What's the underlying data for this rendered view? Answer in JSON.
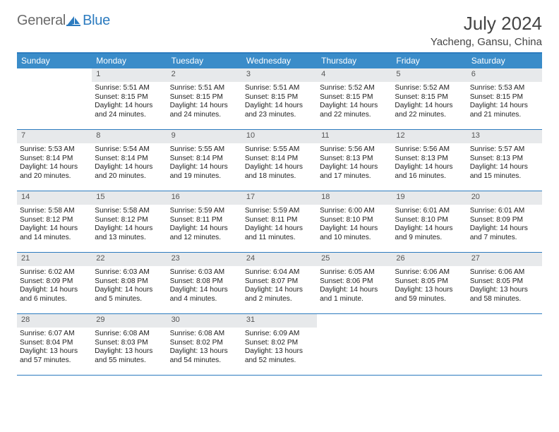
{
  "brand": {
    "part1": "General",
    "part2": "Blue"
  },
  "header": {
    "month_title": "July 2024",
    "location": "Yacheng, Gansu, China"
  },
  "colors": {
    "accent": "#2c7bbf",
    "header_bg": "#3a8cc9",
    "daynum_bg": "#e7e9eb",
    "text": "#222222",
    "muted": "#6b6b6b"
  },
  "typography": {
    "title_fontsize": 26,
    "location_fontsize": 15,
    "dow_fontsize": 12,
    "cell_fontsize": 10.2
  },
  "dow": [
    "Sunday",
    "Monday",
    "Tuesday",
    "Wednesday",
    "Thursday",
    "Friday",
    "Saturday"
  ],
  "weeks": [
    [
      {
        "day": "",
        "sunrise": "",
        "sunset": "",
        "daylight1": "",
        "daylight2": ""
      },
      {
        "day": "1",
        "sunrise": "Sunrise: 5:51 AM",
        "sunset": "Sunset: 8:15 PM",
        "daylight1": "Daylight: 14 hours",
        "daylight2": "and 24 minutes."
      },
      {
        "day": "2",
        "sunrise": "Sunrise: 5:51 AM",
        "sunset": "Sunset: 8:15 PM",
        "daylight1": "Daylight: 14 hours",
        "daylight2": "and 24 minutes."
      },
      {
        "day": "3",
        "sunrise": "Sunrise: 5:51 AM",
        "sunset": "Sunset: 8:15 PM",
        "daylight1": "Daylight: 14 hours",
        "daylight2": "and 23 minutes."
      },
      {
        "day": "4",
        "sunrise": "Sunrise: 5:52 AM",
        "sunset": "Sunset: 8:15 PM",
        "daylight1": "Daylight: 14 hours",
        "daylight2": "and 22 minutes."
      },
      {
        "day": "5",
        "sunrise": "Sunrise: 5:52 AM",
        "sunset": "Sunset: 8:15 PM",
        "daylight1": "Daylight: 14 hours",
        "daylight2": "and 22 minutes."
      },
      {
        "day": "6",
        "sunrise": "Sunrise: 5:53 AM",
        "sunset": "Sunset: 8:15 PM",
        "daylight1": "Daylight: 14 hours",
        "daylight2": "and 21 minutes."
      }
    ],
    [
      {
        "day": "7",
        "sunrise": "Sunrise: 5:53 AM",
        "sunset": "Sunset: 8:14 PM",
        "daylight1": "Daylight: 14 hours",
        "daylight2": "and 20 minutes."
      },
      {
        "day": "8",
        "sunrise": "Sunrise: 5:54 AM",
        "sunset": "Sunset: 8:14 PM",
        "daylight1": "Daylight: 14 hours",
        "daylight2": "and 20 minutes."
      },
      {
        "day": "9",
        "sunrise": "Sunrise: 5:55 AM",
        "sunset": "Sunset: 8:14 PM",
        "daylight1": "Daylight: 14 hours",
        "daylight2": "and 19 minutes."
      },
      {
        "day": "10",
        "sunrise": "Sunrise: 5:55 AM",
        "sunset": "Sunset: 8:14 PM",
        "daylight1": "Daylight: 14 hours",
        "daylight2": "and 18 minutes."
      },
      {
        "day": "11",
        "sunrise": "Sunrise: 5:56 AM",
        "sunset": "Sunset: 8:13 PM",
        "daylight1": "Daylight: 14 hours",
        "daylight2": "and 17 minutes."
      },
      {
        "day": "12",
        "sunrise": "Sunrise: 5:56 AM",
        "sunset": "Sunset: 8:13 PM",
        "daylight1": "Daylight: 14 hours",
        "daylight2": "and 16 minutes."
      },
      {
        "day": "13",
        "sunrise": "Sunrise: 5:57 AM",
        "sunset": "Sunset: 8:13 PM",
        "daylight1": "Daylight: 14 hours",
        "daylight2": "and 15 minutes."
      }
    ],
    [
      {
        "day": "14",
        "sunrise": "Sunrise: 5:58 AM",
        "sunset": "Sunset: 8:12 PM",
        "daylight1": "Daylight: 14 hours",
        "daylight2": "and 14 minutes."
      },
      {
        "day": "15",
        "sunrise": "Sunrise: 5:58 AM",
        "sunset": "Sunset: 8:12 PM",
        "daylight1": "Daylight: 14 hours",
        "daylight2": "and 13 minutes."
      },
      {
        "day": "16",
        "sunrise": "Sunrise: 5:59 AM",
        "sunset": "Sunset: 8:11 PM",
        "daylight1": "Daylight: 14 hours",
        "daylight2": "and 12 minutes."
      },
      {
        "day": "17",
        "sunrise": "Sunrise: 5:59 AM",
        "sunset": "Sunset: 8:11 PM",
        "daylight1": "Daylight: 14 hours",
        "daylight2": "and 11 minutes."
      },
      {
        "day": "18",
        "sunrise": "Sunrise: 6:00 AM",
        "sunset": "Sunset: 8:10 PM",
        "daylight1": "Daylight: 14 hours",
        "daylight2": "and 10 minutes."
      },
      {
        "day": "19",
        "sunrise": "Sunrise: 6:01 AM",
        "sunset": "Sunset: 8:10 PM",
        "daylight1": "Daylight: 14 hours",
        "daylight2": "and 9 minutes."
      },
      {
        "day": "20",
        "sunrise": "Sunrise: 6:01 AM",
        "sunset": "Sunset: 8:09 PM",
        "daylight1": "Daylight: 14 hours",
        "daylight2": "and 7 minutes."
      }
    ],
    [
      {
        "day": "21",
        "sunrise": "Sunrise: 6:02 AM",
        "sunset": "Sunset: 8:09 PM",
        "daylight1": "Daylight: 14 hours",
        "daylight2": "and 6 minutes."
      },
      {
        "day": "22",
        "sunrise": "Sunrise: 6:03 AM",
        "sunset": "Sunset: 8:08 PM",
        "daylight1": "Daylight: 14 hours",
        "daylight2": "and 5 minutes."
      },
      {
        "day": "23",
        "sunrise": "Sunrise: 6:03 AM",
        "sunset": "Sunset: 8:08 PM",
        "daylight1": "Daylight: 14 hours",
        "daylight2": "and 4 minutes."
      },
      {
        "day": "24",
        "sunrise": "Sunrise: 6:04 AM",
        "sunset": "Sunset: 8:07 PM",
        "daylight1": "Daylight: 14 hours",
        "daylight2": "and 2 minutes."
      },
      {
        "day": "25",
        "sunrise": "Sunrise: 6:05 AM",
        "sunset": "Sunset: 8:06 PM",
        "daylight1": "Daylight: 14 hours",
        "daylight2": "and 1 minute."
      },
      {
        "day": "26",
        "sunrise": "Sunrise: 6:06 AM",
        "sunset": "Sunset: 8:05 PM",
        "daylight1": "Daylight: 13 hours",
        "daylight2": "and 59 minutes."
      },
      {
        "day": "27",
        "sunrise": "Sunrise: 6:06 AM",
        "sunset": "Sunset: 8:05 PM",
        "daylight1": "Daylight: 13 hours",
        "daylight2": "and 58 minutes."
      }
    ],
    [
      {
        "day": "28",
        "sunrise": "Sunrise: 6:07 AM",
        "sunset": "Sunset: 8:04 PM",
        "daylight1": "Daylight: 13 hours",
        "daylight2": "and 57 minutes."
      },
      {
        "day": "29",
        "sunrise": "Sunrise: 6:08 AM",
        "sunset": "Sunset: 8:03 PM",
        "daylight1": "Daylight: 13 hours",
        "daylight2": "and 55 minutes."
      },
      {
        "day": "30",
        "sunrise": "Sunrise: 6:08 AM",
        "sunset": "Sunset: 8:02 PM",
        "daylight1": "Daylight: 13 hours",
        "daylight2": "and 54 minutes."
      },
      {
        "day": "31",
        "sunrise": "Sunrise: 6:09 AM",
        "sunset": "Sunset: 8:02 PM",
        "daylight1": "Daylight: 13 hours",
        "daylight2": "and 52 minutes."
      },
      {
        "day": "",
        "sunrise": "",
        "sunset": "",
        "daylight1": "",
        "daylight2": ""
      },
      {
        "day": "",
        "sunrise": "",
        "sunset": "",
        "daylight1": "",
        "daylight2": ""
      },
      {
        "day": "",
        "sunrise": "",
        "sunset": "",
        "daylight1": "",
        "daylight2": ""
      }
    ]
  ]
}
